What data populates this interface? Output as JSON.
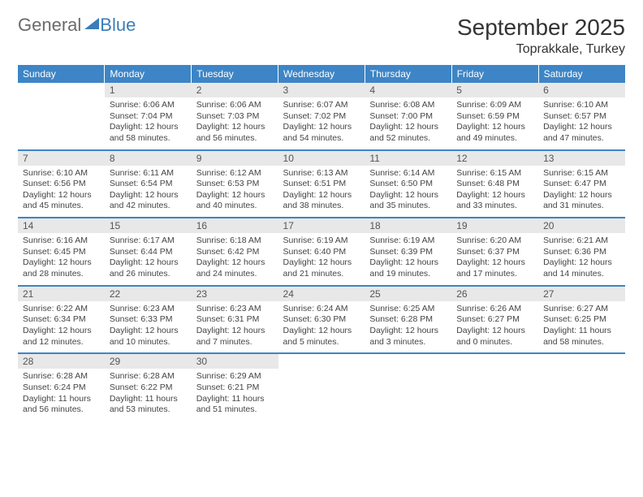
{
  "logo": {
    "general": "General",
    "blue": "Blue"
  },
  "title": "September 2025",
  "location": "Toprakkale, Turkey",
  "weekdays": [
    "Sunday",
    "Monday",
    "Tuesday",
    "Wednesday",
    "Thursday",
    "Friday",
    "Saturday"
  ],
  "colors": {
    "header_bg": "#3d85c6",
    "daynum_bg": "#e8e8e8",
    "logo_blue": "#3a7db8",
    "logo_gray": "#6b6b6b",
    "border": "#3d85c6"
  },
  "typography": {
    "title_fontsize": 28,
    "location_fontsize": 16,
    "weekday_fontsize": 12,
    "daynum_fontsize": 12,
    "body_fontsize": 10.5
  },
  "weeks": [
    [
      {
        "n": "",
        "sr": "",
        "ss": "",
        "dl": ""
      },
      {
        "n": "1",
        "sr": "Sunrise: 6:06 AM",
        "ss": "Sunset: 7:04 PM",
        "dl": "Daylight: 12 hours and 58 minutes."
      },
      {
        "n": "2",
        "sr": "Sunrise: 6:06 AM",
        "ss": "Sunset: 7:03 PM",
        "dl": "Daylight: 12 hours and 56 minutes."
      },
      {
        "n": "3",
        "sr": "Sunrise: 6:07 AM",
        "ss": "Sunset: 7:02 PM",
        "dl": "Daylight: 12 hours and 54 minutes."
      },
      {
        "n": "4",
        "sr": "Sunrise: 6:08 AM",
        "ss": "Sunset: 7:00 PM",
        "dl": "Daylight: 12 hours and 52 minutes."
      },
      {
        "n": "5",
        "sr": "Sunrise: 6:09 AM",
        "ss": "Sunset: 6:59 PM",
        "dl": "Daylight: 12 hours and 49 minutes."
      },
      {
        "n": "6",
        "sr": "Sunrise: 6:10 AM",
        "ss": "Sunset: 6:57 PM",
        "dl": "Daylight: 12 hours and 47 minutes."
      }
    ],
    [
      {
        "n": "7",
        "sr": "Sunrise: 6:10 AM",
        "ss": "Sunset: 6:56 PM",
        "dl": "Daylight: 12 hours and 45 minutes."
      },
      {
        "n": "8",
        "sr": "Sunrise: 6:11 AM",
        "ss": "Sunset: 6:54 PM",
        "dl": "Daylight: 12 hours and 42 minutes."
      },
      {
        "n": "9",
        "sr": "Sunrise: 6:12 AM",
        "ss": "Sunset: 6:53 PM",
        "dl": "Daylight: 12 hours and 40 minutes."
      },
      {
        "n": "10",
        "sr": "Sunrise: 6:13 AM",
        "ss": "Sunset: 6:51 PM",
        "dl": "Daylight: 12 hours and 38 minutes."
      },
      {
        "n": "11",
        "sr": "Sunrise: 6:14 AM",
        "ss": "Sunset: 6:50 PM",
        "dl": "Daylight: 12 hours and 35 minutes."
      },
      {
        "n": "12",
        "sr": "Sunrise: 6:15 AM",
        "ss": "Sunset: 6:48 PM",
        "dl": "Daylight: 12 hours and 33 minutes."
      },
      {
        "n": "13",
        "sr": "Sunrise: 6:15 AM",
        "ss": "Sunset: 6:47 PM",
        "dl": "Daylight: 12 hours and 31 minutes."
      }
    ],
    [
      {
        "n": "14",
        "sr": "Sunrise: 6:16 AM",
        "ss": "Sunset: 6:45 PM",
        "dl": "Daylight: 12 hours and 28 minutes."
      },
      {
        "n": "15",
        "sr": "Sunrise: 6:17 AM",
        "ss": "Sunset: 6:44 PM",
        "dl": "Daylight: 12 hours and 26 minutes."
      },
      {
        "n": "16",
        "sr": "Sunrise: 6:18 AM",
        "ss": "Sunset: 6:42 PM",
        "dl": "Daylight: 12 hours and 24 minutes."
      },
      {
        "n": "17",
        "sr": "Sunrise: 6:19 AM",
        "ss": "Sunset: 6:40 PM",
        "dl": "Daylight: 12 hours and 21 minutes."
      },
      {
        "n": "18",
        "sr": "Sunrise: 6:19 AM",
        "ss": "Sunset: 6:39 PM",
        "dl": "Daylight: 12 hours and 19 minutes."
      },
      {
        "n": "19",
        "sr": "Sunrise: 6:20 AM",
        "ss": "Sunset: 6:37 PM",
        "dl": "Daylight: 12 hours and 17 minutes."
      },
      {
        "n": "20",
        "sr": "Sunrise: 6:21 AM",
        "ss": "Sunset: 6:36 PM",
        "dl": "Daylight: 12 hours and 14 minutes."
      }
    ],
    [
      {
        "n": "21",
        "sr": "Sunrise: 6:22 AM",
        "ss": "Sunset: 6:34 PM",
        "dl": "Daylight: 12 hours and 12 minutes."
      },
      {
        "n": "22",
        "sr": "Sunrise: 6:23 AM",
        "ss": "Sunset: 6:33 PM",
        "dl": "Daylight: 12 hours and 10 minutes."
      },
      {
        "n": "23",
        "sr": "Sunrise: 6:23 AM",
        "ss": "Sunset: 6:31 PM",
        "dl": "Daylight: 12 hours and 7 minutes."
      },
      {
        "n": "24",
        "sr": "Sunrise: 6:24 AM",
        "ss": "Sunset: 6:30 PM",
        "dl": "Daylight: 12 hours and 5 minutes."
      },
      {
        "n": "25",
        "sr": "Sunrise: 6:25 AM",
        "ss": "Sunset: 6:28 PM",
        "dl": "Daylight: 12 hours and 3 minutes."
      },
      {
        "n": "26",
        "sr": "Sunrise: 6:26 AM",
        "ss": "Sunset: 6:27 PM",
        "dl": "Daylight: 12 hours and 0 minutes."
      },
      {
        "n": "27",
        "sr": "Sunrise: 6:27 AM",
        "ss": "Sunset: 6:25 PM",
        "dl": "Daylight: 11 hours and 58 minutes."
      }
    ],
    [
      {
        "n": "28",
        "sr": "Sunrise: 6:28 AM",
        "ss": "Sunset: 6:24 PM",
        "dl": "Daylight: 11 hours and 56 minutes."
      },
      {
        "n": "29",
        "sr": "Sunrise: 6:28 AM",
        "ss": "Sunset: 6:22 PM",
        "dl": "Daylight: 11 hours and 53 minutes."
      },
      {
        "n": "30",
        "sr": "Sunrise: 6:29 AM",
        "ss": "Sunset: 6:21 PM",
        "dl": "Daylight: 11 hours and 51 minutes."
      },
      {
        "n": "",
        "sr": "",
        "ss": "",
        "dl": ""
      },
      {
        "n": "",
        "sr": "",
        "ss": "",
        "dl": ""
      },
      {
        "n": "",
        "sr": "",
        "ss": "",
        "dl": ""
      },
      {
        "n": "",
        "sr": "",
        "ss": "",
        "dl": ""
      }
    ]
  ]
}
